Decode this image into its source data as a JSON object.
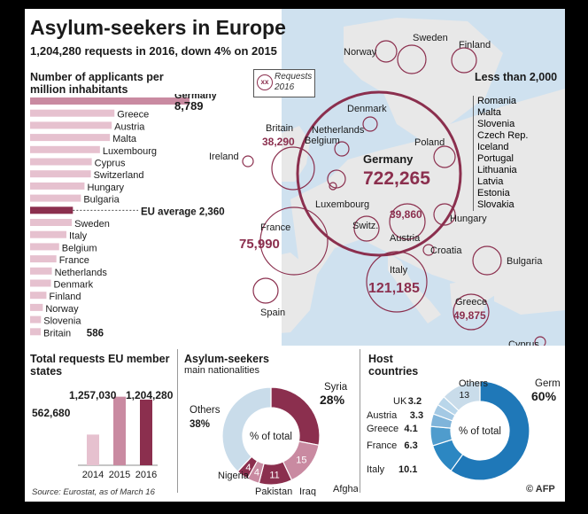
{
  "header": {
    "title": "Asylum-seekers in Europe",
    "subtitle": "1,204,280 requests in 2016, down 4% on 2015"
  },
  "colors": {
    "maroon": "#8b2f4e",
    "pink": "#c98aa1",
    "light_pink": "#e6c1cf",
    "blue": "#1f78b8",
    "light_blue": "#c9dcea",
    "map_land": "#e8e8e8",
    "map_sea": "#cfe1ef"
  },
  "map": {
    "legend_marker": "xx",
    "legend_label": "Requests 2016",
    "less_than_title": "Less than 2,000",
    "less_than_list": [
      "Romania",
      "Malta",
      "Slovenia",
      "Czech Rep.",
      "Iceland",
      "Portugal",
      "Lithuania",
      "Latvia",
      "Estonia",
      "Slovakia"
    ],
    "countries": [
      {
        "name": "Norway"
      },
      {
        "name": "Sweden"
      },
      {
        "name": "Finland"
      },
      {
        "name": "Denmark"
      },
      {
        "name": "Britain",
        "value": "38,290"
      },
      {
        "name": "Netherlands"
      },
      {
        "name": "Belgium"
      },
      {
        "name": "Ireland"
      },
      {
        "name": "Poland"
      },
      {
        "name": "Germany",
        "value": "722,265"
      },
      {
        "name": "Luxembourg"
      },
      {
        "name": "Switz."
      },
      {
        "name": "Austria",
        "value": "39,860"
      },
      {
        "name": "Hungary"
      },
      {
        "name": "France",
        "value": "75,990"
      },
      {
        "name": "Croatia"
      },
      {
        "name": "Bulgaria"
      },
      {
        "name": "Italy",
        "value": "121,185"
      },
      {
        "name": "Spain"
      },
      {
        "name": "Greece",
        "value": "49,875"
      },
      {
        "name": "Cyprus"
      }
    ]
  },
  "chart_data": [
    {
      "type": "bar",
      "title": "Number of applicants per million inhabitants",
      "orientation": "horizontal",
      "categories": [
        "Germany",
        "Greece",
        "Austria",
        "Malta",
        "Luxembourg",
        "Cyprus",
        "Switzerland",
        "Hungary",
        "Bulgaria",
        "EU average",
        "Sweden",
        "Italy",
        "Belgium",
        "France",
        "Netherlands",
        "Denmark",
        "Finland",
        "Norway",
        "Slovenia",
        "Britain"
      ],
      "values": [
        8789,
        4650,
        4500,
        4400,
        3850,
        3400,
        3350,
        3000,
        2800,
        2360,
        2300,
        2000,
        1600,
        1450,
        1200,
        1150,
        900,
        700,
        600,
        586
      ],
      "labels": {
        "Germany": "8,789",
        "EU average": "2,360",
        "Britain": "586"
      },
      "eu_average_label": "EU average"
    },
    {
      "type": "bar",
      "title": "Total requests EU member states",
      "categories": [
        "2014",
        "2015",
        "2016"
      ],
      "values": [
        562680,
        1257030,
        1204280
      ],
      "value_labels": [
        "562,680",
        "1,257,030",
        "1,204,280"
      ]
    },
    {
      "type": "pie",
      "title": "Asylum-seekers",
      "subtitle": "main nationalities",
      "center_label": "% of total",
      "slices": [
        {
          "name": "Syria",
          "value": 28,
          "label": "28%"
        },
        {
          "name": "Afghanistan",
          "value": 15,
          "label": "15"
        },
        {
          "name": "Iraq",
          "value": 11,
          "label": "11"
        },
        {
          "name": "Pakistan",
          "value": 4,
          "label": "4"
        },
        {
          "name": "Nigeria",
          "value": 4,
          "label": "4"
        },
        {
          "name": "Others",
          "value": 38,
          "label": "38%"
        }
      ]
    },
    {
      "type": "pie",
      "title": "Host countries",
      "center_label": "% of total",
      "slices": [
        {
          "name": "Germany",
          "value": 60,
          "label": "60%"
        },
        {
          "name": "Italy",
          "value": 10.1,
          "label": "10.1"
        },
        {
          "name": "France",
          "value": 6.3,
          "label": "6.3"
        },
        {
          "name": "Greece",
          "value": 4.1,
          "label": "4.1"
        },
        {
          "name": "Austria",
          "value": 3.3,
          "label": "3.3"
        },
        {
          "name": "UK",
          "value": 3.2,
          "label": "3.2"
        },
        {
          "name": "Others",
          "value": 13,
          "label": "13"
        }
      ]
    }
  ],
  "footer": {
    "source": "Source: Eurostat, as of March 16",
    "copyright": "© AFP"
  }
}
